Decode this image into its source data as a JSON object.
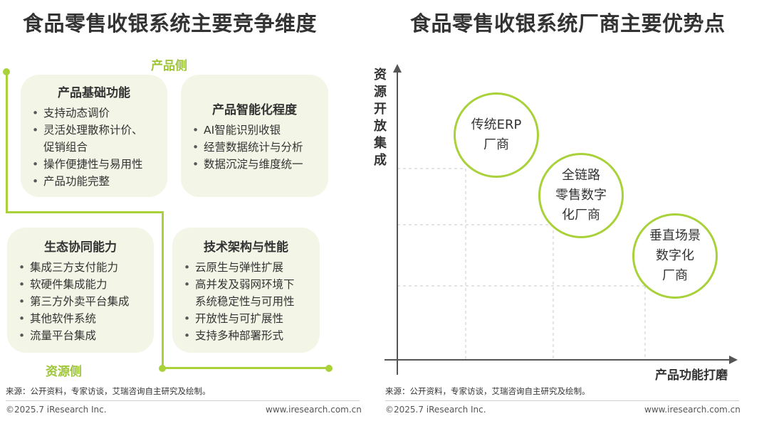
{
  "left": {
    "title": "食品零售收银系统主要竞争维度",
    "product_side_label": "产品侧",
    "resource_side_label": "资源侧",
    "cards": [
      {
        "title": "产品基础功能",
        "items": [
          "支持动态调价",
          "灵活处理散称计价、",
          "促销组合",
          "操作便捷性与易用性",
          "产品功能完整"
        ]
      },
      {
        "title": "产品智能化程度",
        "items": [
          "AI智能识别收银",
          "经营数据统计与分析",
          "数据沉淀与维度统一"
        ]
      },
      {
        "title": "生态协同能力",
        "items": [
          "集成三方支付能力",
          "软硬件集成能力",
          "第三方外卖平台集成",
          "其他软件系统",
          "流量平台集成"
        ]
      },
      {
        "title": "技术架构与性能",
        "items": [
          "云原生与弹性扩展",
          "高并发及弱网环境下",
          "系统稳定性与可用性",
          "开放性与可扩展性",
          "支持多种部署形式"
        ]
      }
    ],
    "source": "来源：公开资料，专家访谈，艾瑞咨询自主研究及绘制。",
    "copyright": "©2025.7 iResearch Inc.",
    "website": "www.iresearch.com.cn"
  },
  "right": {
    "title": "食品零售收银系统厂商主要优势点",
    "y_axis_label": "资源开放集成",
    "x_axis_label": "产品功能打磨",
    "bubbles": [
      {
        "label": "传统ERP\n厂商"
      },
      {
        "label": "全链路\n零售数字\n化厂商"
      },
      {
        "label": "垂直场景\n数字化\n厂商"
      }
    ],
    "source": "来源：公开资料，专家访谈，艾瑞咨询自主研究及绘制。",
    "copyright": "©2025.7 iResearch Inc.",
    "website": "www.iresearch.com.cn"
  },
  "colors": {
    "accent": "#a8d13a",
    "label_green": "#9dc536",
    "card_bg": "#f3f5e6",
    "text": "#333333"
  }
}
